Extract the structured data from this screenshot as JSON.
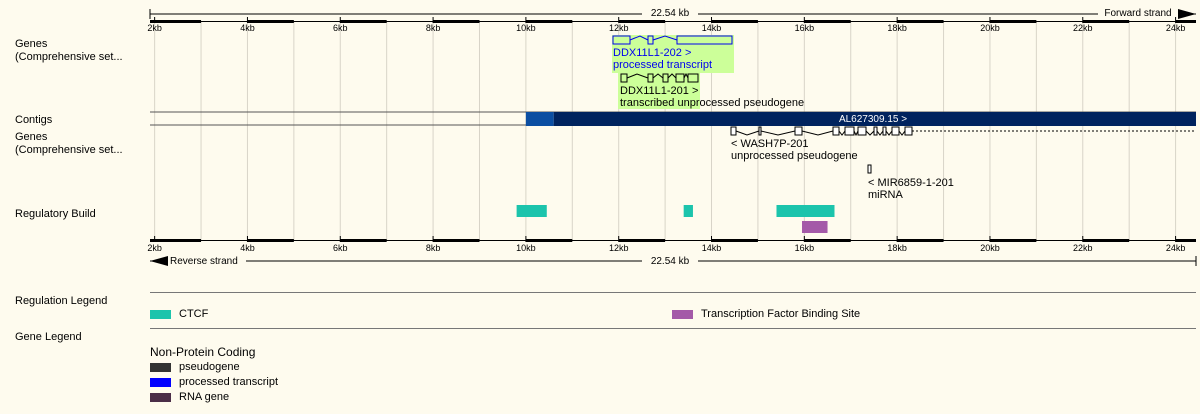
{
  "scale": {
    "top_length": "22.54 kb",
    "bottom_length": "22.54 kb",
    "forward_strand": "Forward strand",
    "reverse_strand": "Reverse strand",
    "ticks": [
      "2kb",
      "4kb",
      "6kb",
      "8kb",
      "10kb",
      "12kb",
      "14kb",
      "16kb",
      "18kb",
      "20kb",
      "22kb",
      "24kb"
    ],
    "start_kb": 1.9,
    "end_kb": 24.44
  },
  "tracks": {
    "genes_forward_label": "Genes\n(Comprehensive set...",
    "contigs_label": "Contigs",
    "genes_reverse_label": "Genes\n(Comprehensive set...",
    "regulatory_label": "Regulatory Build"
  },
  "forward_genes": [
    {
      "name": "DDX11L1-202 >",
      "biotype": "processed transcript",
      "color": "#0000ee",
      "label_bg": "#ccff99"
    },
    {
      "name": "DDX11L1-201 >",
      "biotype": "transcribed unprocessed pseudogene",
      "color": "#000000",
      "label_bg": "#ccff99"
    }
  ],
  "contig": {
    "name": "AL627309.15 >",
    "color_dark": "#00235e",
    "color_mid": "#0b4ea2",
    "start_kb": 10.0,
    "mid_end_kb": 10.6,
    "end_kb": 24.44
  },
  "reverse_genes": [
    {
      "name": "< WASH7P-201",
      "biotype": "unprocessed pseudogene"
    },
    {
      "name": "< MIR6859-1-201",
      "biotype": "miRNA"
    }
  ],
  "regulatory_features": [
    {
      "type": "CTCF",
      "start_kb": 9.8,
      "end_kb": 10.45
    },
    {
      "type": "CTCF",
      "start_kb": 13.4,
      "end_kb": 13.6
    },
    {
      "type": "CTCF",
      "start_kb": 15.4,
      "end_kb": 16.65
    },
    {
      "type": "Transcription Factor Binding Site",
      "start_kb": 15.95,
      "end_kb": 16.5
    }
  ],
  "colors": {
    "ctcf": "#1cc4ac",
    "tfbs": "#a45aa8",
    "pseudogene": "#333333",
    "processed_transcript": "#0000ff",
    "rna_gene": "#4b2e48",
    "background": "#fefbee"
  },
  "legend": {
    "regulation_title": "Regulation Legend",
    "gene_title": "Gene Legend",
    "ctcf_label": "CTCF",
    "tfbs_label": "Transcription Factor Binding Site",
    "non_protein_coding_title": "Non-Protein Coding",
    "pseudogene_label": "pseudogene",
    "processed_transcript_label": "processed transcript",
    "rna_gene_label": "RNA gene"
  }
}
